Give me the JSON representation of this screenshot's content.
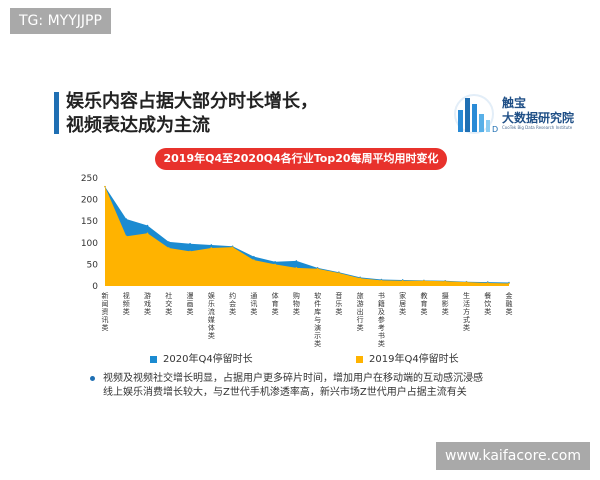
{
  "watermark_top": "TG: MYYJJPP",
  "watermark_bottom": "www.kaifacore.com",
  "headline": {
    "line1": "娱乐内容占据大部分时长增长，",
    "line2": "视频表达成为主流"
  },
  "logo": {
    "name1": "触宝",
    "name2": "大数据研究院",
    "sub": "CooTek Big Data Research Institute"
  },
  "colors": {
    "accent": "#1f6fb3",
    "banner": "#e8322c",
    "series2020": "#1b8bd1",
    "series2019": "#ffb300"
  },
  "chart_data": {
    "type": "area",
    "title": "2019年Q4至2020Q4各行业Top20每周平均用时变化",
    "ylim": [
      0,
      250
    ],
    "yticks": [
      0,
      50,
      100,
      150,
      200,
      250
    ],
    "grid": false,
    "legend": "bottom",
    "categories": [
      "新闻资讯类",
      "视频类",
      "游戏类",
      "社交类",
      "漫画类",
      "娱乐流媒体类",
      "约会类",
      "通讯类",
      "体育类",
      "购物类",
      "软件库与演示类",
      "音乐类",
      "旅游出行类",
      "书籍及参考书类",
      "家居类",
      "教育类",
      "摄影类",
      "生活方式类",
      "餐饮类",
      "金融类"
    ],
    "series": [
      {
        "name": "2020年Q4停留时长",
        "values": [
          230,
          155,
          140,
          102,
          98,
          95,
          92,
          68,
          56,
          58,
          42,
          32,
          20,
          15,
          14,
          13,
          12,
          10,
          9,
          8
        ]
      },
      {
        "name": "2019年Q4停留时长",
        "values": [
          230,
          115,
          122,
          88,
          80,
          88,
          90,
          60,
          50,
          42,
          40,
          30,
          18,
          13,
          12,
          12,
          11,
          9,
          7,
          6
        ]
      }
    ]
  },
  "notes": [
    "视频及视频社交增长明显，占据用户更多碎片时间，增加用户在移动端的互动感沉浸感",
    "线上娱乐消费增长较大，与Z世代手机渗透率高，新兴市场Z世代用户占据主流有关"
  ]
}
